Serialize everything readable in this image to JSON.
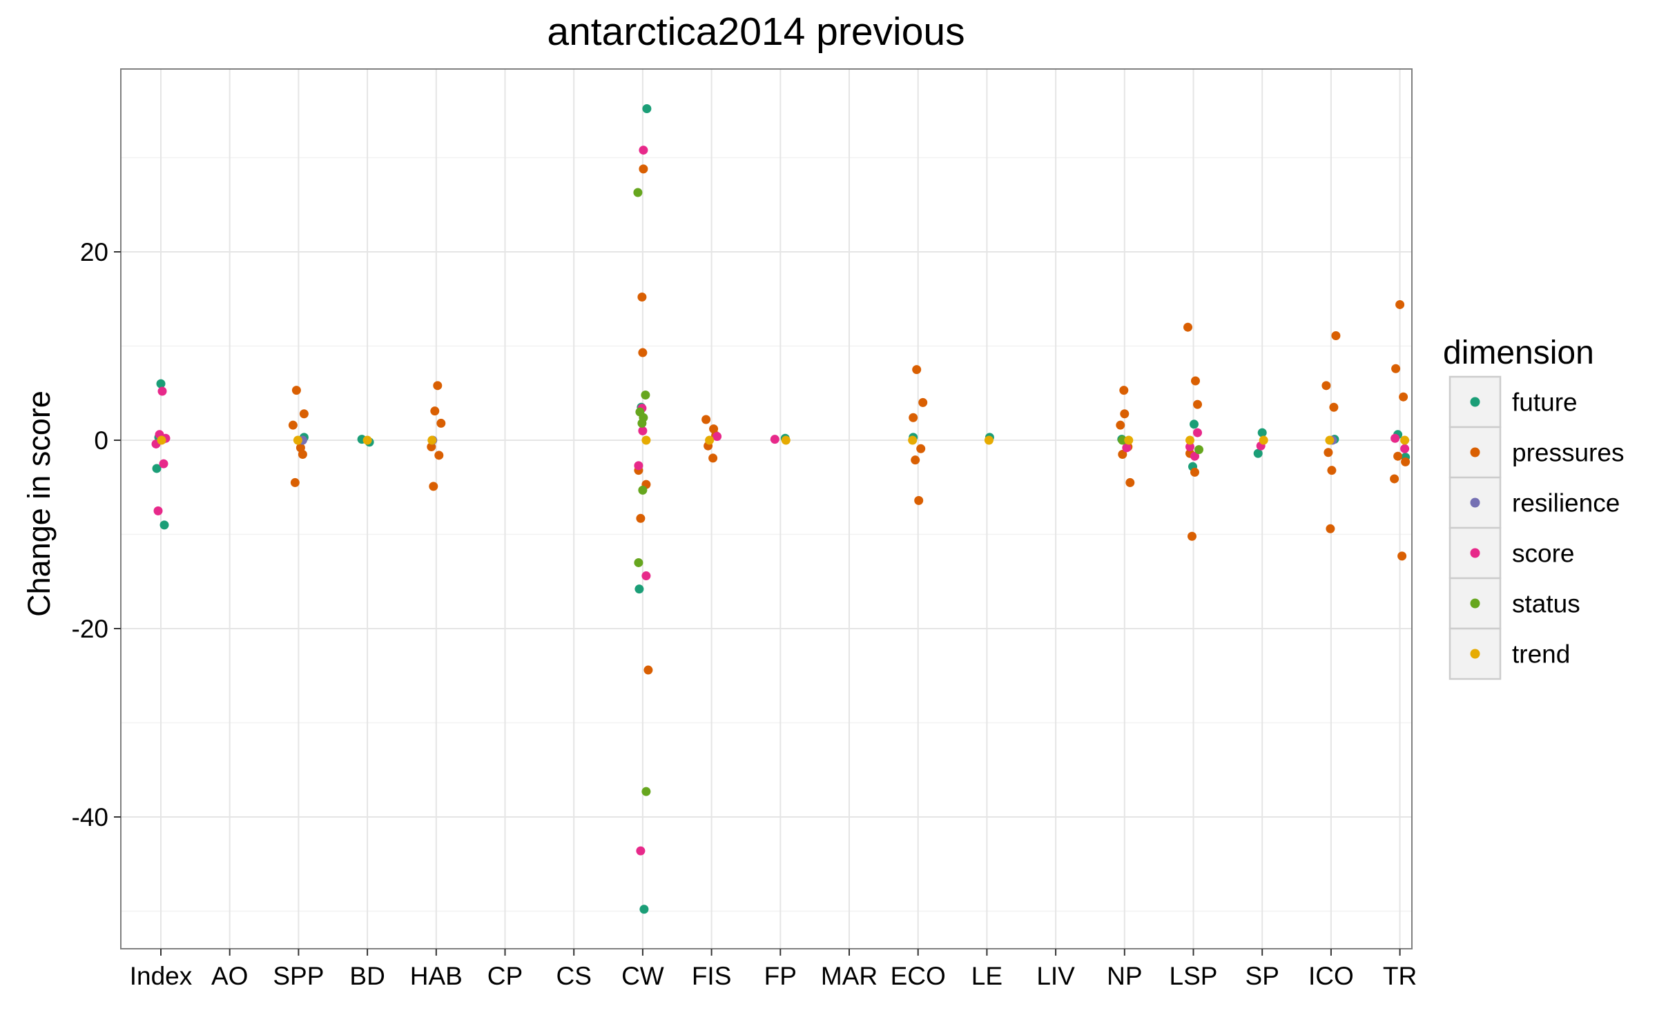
{
  "chart_data": {
    "type": "scatter",
    "title": "antarctica2014 previous",
    "xlabel": "",
    "ylabel": "Change in score",
    "categories": [
      "Index",
      "AO",
      "SPP",
      "BD",
      "HAB",
      "CP",
      "CS",
      "CW",
      "FIS",
      "FP",
      "MAR",
      "ECO",
      "LE",
      "LIV",
      "NP",
      "LSP",
      "SP",
      "ICO",
      "TR"
    ],
    "ylim": [
      -53.5,
      39.5
    ],
    "yticks": [
      -40,
      -20,
      0,
      20
    ],
    "grid": true,
    "legend": {
      "title": "dimension",
      "position": "right"
    },
    "series": [
      {
        "name": "future",
        "color": "#1b9e77",
        "points": [
          {
            "x": "Index",
            "y": 6.0
          },
          {
            "x": "Index",
            "y": -3.0
          },
          {
            "x": "Index",
            "y": -9.0
          },
          {
            "x": "Index",
            "y": 0.3
          },
          {
            "x": "SPP",
            "y": 0.3
          },
          {
            "x": "BD",
            "y": 0.1
          },
          {
            "x": "BD",
            "y": -0.2
          },
          {
            "x": "CW",
            "y": 35.2
          },
          {
            "x": "CW",
            "y": -15.8
          },
          {
            "x": "CW",
            "y": -49.8
          },
          {
            "x": "CW",
            "y": 3.5
          },
          {
            "x": "FP",
            "y": 0.2
          },
          {
            "x": "ECO",
            "y": 0.3
          },
          {
            "x": "LE",
            "y": 0.3
          },
          {
            "x": "NP",
            "y": 0.1
          },
          {
            "x": "LSP",
            "y": 1.7
          },
          {
            "x": "LSP",
            "y": -2.8
          },
          {
            "x": "SP",
            "y": 0.8
          },
          {
            "x": "SP",
            "y": -1.4
          },
          {
            "x": "ICO",
            "y": 0.1
          },
          {
            "x": "TR",
            "y": 0.6
          },
          {
            "x": "TR",
            "y": -1.8
          }
        ]
      },
      {
        "name": "pressures",
        "color": "#d95f02",
        "points": [
          {
            "x": "SPP",
            "y": 5.3
          },
          {
            "x": "SPP",
            "y": 2.8
          },
          {
            "x": "SPP",
            "y": 1.6
          },
          {
            "x": "SPP",
            "y": -0.8
          },
          {
            "x": "SPP",
            "y": -1.5
          },
          {
            "x": "SPP",
            "y": -4.5
          },
          {
            "x": "HAB",
            "y": 5.8
          },
          {
            "x": "HAB",
            "y": 3.1
          },
          {
            "x": "HAB",
            "y": 1.8
          },
          {
            "x": "HAB",
            "y": -0.7
          },
          {
            "x": "HAB",
            "y": -1.6
          },
          {
            "x": "HAB",
            "y": -4.9
          },
          {
            "x": "CW",
            "y": 28.8
          },
          {
            "x": "CW",
            "y": 15.2
          },
          {
            "x": "CW",
            "y": 9.3
          },
          {
            "x": "CW",
            "y": -3.2
          },
          {
            "x": "CW",
            "y": -4.7
          },
          {
            "x": "CW",
            "y": -8.3
          },
          {
            "x": "CW",
            "y": -24.4
          },
          {
            "x": "FIS",
            "y": 2.2
          },
          {
            "x": "FIS",
            "y": 1.2
          },
          {
            "x": "FIS",
            "y": 0.5
          },
          {
            "x": "FIS",
            "y": -0.6
          },
          {
            "x": "FIS",
            "y": -1.9
          },
          {
            "x": "ECO",
            "y": 7.5
          },
          {
            "x": "ECO",
            "y": 4.0
          },
          {
            "x": "ECO",
            "y": 2.4
          },
          {
            "x": "ECO",
            "y": -0.9
          },
          {
            "x": "ECO",
            "y": -2.1
          },
          {
            "x": "ECO",
            "y": -6.4
          },
          {
            "x": "NP",
            "y": 5.3
          },
          {
            "x": "NP",
            "y": 2.8
          },
          {
            "x": "NP",
            "y": 1.6
          },
          {
            "x": "NP",
            "y": -0.7
          },
          {
            "x": "NP",
            "y": -1.5
          },
          {
            "x": "NP",
            "y": -4.5
          },
          {
            "x": "LSP",
            "y": 12.0
          },
          {
            "x": "LSP",
            "y": 6.3
          },
          {
            "x": "LSP",
            "y": 3.8
          },
          {
            "x": "LSP",
            "y": -1.4
          },
          {
            "x": "LSP",
            "y": -3.4
          },
          {
            "x": "LSP",
            "y": -10.2
          },
          {
            "x": "ICO",
            "y": 11.1
          },
          {
            "x": "ICO",
            "y": 5.8
          },
          {
            "x": "ICO",
            "y": 3.5
          },
          {
            "x": "ICO",
            "y": -1.3
          },
          {
            "x": "ICO",
            "y": -3.2
          },
          {
            "x": "ICO",
            "y": -9.4
          },
          {
            "x": "TR",
            "y": 14.4
          },
          {
            "x": "TR",
            "y": 7.6
          },
          {
            "x": "TR",
            "y": 4.6
          },
          {
            "x": "TR",
            "y": -1.7
          },
          {
            "x": "TR",
            "y": -2.3
          },
          {
            "x": "TR",
            "y": -4.1
          },
          {
            "x": "TR",
            "y": -12.3
          }
        ]
      },
      {
        "name": "resilience",
        "color": "#7570b3",
        "points": [
          {
            "x": "Index",
            "y": 0.1
          },
          {
            "x": "SPP",
            "y": 0.0
          },
          {
            "x": "HAB",
            "y": 0.0
          },
          {
            "x": "ICO",
            "y": 0.0
          }
        ]
      },
      {
        "name": "score",
        "color": "#e7298a",
        "points": [
          {
            "x": "Index",
            "y": 5.2
          },
          {
            "x": "Index",
            "y": 0.6
          },
          {
            "x": "Index",
            "y": 0.2
          },
          {
            "x": "Index",
            "y": -0.4
          },
          {
            "x": "Index",
            "y": -2.5
          },
          {
            "x": "Index",
            "y": -7.5
          },
          {
            "x": "CW",
            "y": 30.8
          },
          {
            "x": "CW",
            "y": 3.4
          },
          {
            "x": "CW",
            "y": 1.0
          },
          {
            "x": "CW",
            "y": -2.7
          },
          {
            "x": "CW",
            "y": -14.4
          },
          {
            "x": "CW",
            "y": -43.6
          },
          {
            "x": "FIS",
            "y": 0.4
          },
          {
            "x": "FP",
            "y": 0.1
          },
          {
            "x": "NP",
            "y": -0.8
          },
          {
            "x": "LSP",
            "y": 0.8
          },
          {
            "x": "LSP",
            "y": -0.7
          },
          {
            "x": "LSP",
            "y": -1.7
          },
          {
            "x": "SP",
            "y": -0.6
          },
          {
            "x": "TR",
            "y": -0.9
          },
          {
            "x": "TR",
            "y": 0.2
          }
        ]
      },
      {
        "name": "status",
        "color": "#66a61e",
        "points": [
          {
            "x": "CW",
            "y": 26.3
          },
          {
            "x": "CW",
            "y": 4.8
          },
          {
            "x": "CW",
            "y": 3.0
          },
          {
            "x": "CW",
            "y": 2.4
          },
          {
            "x": "CW",
            "y": 1.8
          },
          {
            "x": "CW",
            "y": -5.3
          },
          {
            "x": "CW",
            "y": -13.0
          },
          {
            "x": "CW",
            "y": -37.3
          },
          {
            "x": "NP",
            "y": 0.0
          },
          {
            "x": "LSP",
            "y": -1.0
          }
        ]
      },
      {
        "name": "trend",
        "color": "#e6ab02",
        "points": [
          {
            "x": "Index",
            "y": 0.0
          },
          {
            "x": "SPP",
            "y": 0.0
          },
          {
            "x": "BD",
            "y": 0.0
          },
          {
            "x": "HAB",
            "y": 0.0
          },
          {
            "x": "CW",
            "y": 0.0
          },
          {
            "x": "FIS",
            "y": 0.0
          },
          {
            "x": "FP",
            "y": 0.0
          },
          {
            "x": "ECO",
            "y": 0.0
          },
          {
            "x": "LE",
            "y": 0.0
          },
          {
            "x": "NP",
            "y": 0.0
          },
          {
            "x": "LSP",
            "y": 0.0
          },
          {
            "x": "SP",
            "y": 0.0
          },
          {
            "x": "ICO",
            "y": 0.0
          },
          {
            "x": "TR",
            "y": 0.0
          }
        ]
      }
    ]
  }
}
